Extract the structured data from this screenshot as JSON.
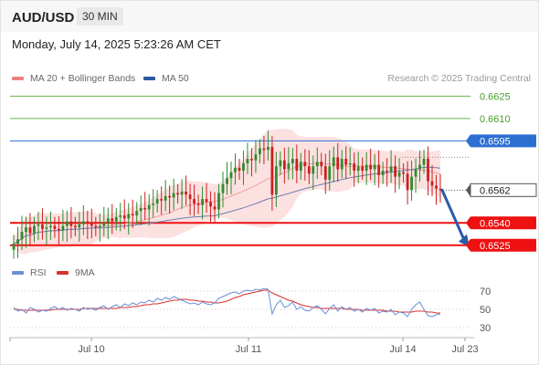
{
  "header": {
    "symbol": "AUD/USD",
    "timeframe": "30 MIN",
    "datetime": "Monday, July 14, 2025 5:23:26 AM CET"
  },
  "legend": {
    "items": [
      {
        "label": "MA 20 + Bollinger Bands",
        "color": "#f08080"
      },
      {
        "label": "MA 50",
        "color": "#2c5aa0"
      }
    ],
    "credit": "Research © 2025 Trading Central"
  },
  "rsi_legend": {
    "items": [
      {
        "label": "RSI",
        "color": "#6a8fd8"
      },
      {
        "label": "9MA",
        "color": "#d93030"
      }
    ]
  },
  "colors": {
    "up": "#2e8b2e",
    "down": "#cc1f1f",
    "support": "#ee1111",
    "resistance_green": "#6ab04c",
    "resistance_blue": "#2c6fd1",
    "arrow": "#2b5aa8",
    "band": "#fbdcdc"
  },
  "chart_data": [
    {
      "type": "candlestick",
      "title": "AUD/USD",
      "y_range": [
        0.6512,
        0.6632
      ],
      "x_labels": [
        "Jul 10",
        "Jul 11",
        "Jul 14",
        "Jul 23"
      ],
      "levels": [
        {
          "value": 0.6625,
          "label": "0.6625",
          "kind": "resistance"
        },
        {
          "value": 0.661,
          "label": "0.6610",
          "kind": "resistance"
        },
        {
          "value": 0.6595,
          "label": "0.6595",
          "kind": "pivot"
        },
        {
          "value": 0.654,
          "label": "0.6540",
          "kind": "support"
        },
        {
          "value": 0.6525,
          "label": "0.6525",
          "kind": "support"
        }
      ],
      "last_price": {
        "value": 0.6562,
        "label": "0.6562"
      },
      "forecast_arrow": {
        "from": 0.6562,
        "to": 0.6525
      },
      "candles_close": [
        0.6526,
        0.6529,
        0.6534,
        0.6537,
        0.6533,
        0.6538,
        0.6539,
        0.6536,
        0.6537,
        0.6538,
        0.6536,
        0.6535,
        0.6538,
        0.6541,
        0.6538,
        0.6537,
        0.6539,
        0.6541,
        0.654,
        0.6538,
        0.6537,
        0.6538,
        0.654,
        0.6543,
        0.6541,
        0.6544,
        0.6545,
        0.6543,
        0.6546,
        0.6545,
        0.6548,
        0.655,
        0.6549,
        0.6552,
        0.6553,
        0.6556,
        0.6555,
        0.6558,
        0.6557,
        0.656,
        0.6559,
        0.6561,
        0.6559,
        0.6556,
        0.6553,
        0.6552,
        0.6556,
        0.6554,
        0.6551,
        0.6549,
        0.656,
        0.6566,
        0.657,
        0.6574,
        0.6577,
        0.6575,
        0.658,
        0.6583,
        0.6582,
        0.6586,
        0.659,
        0.6589,
        0.6591,
        0.6559,
        0.6578,
        0.6582,
        0.6576,
        0.658,
        0.6583,
        0.6575,
        0.6581,
        0.6578,
        0.6573,
        0.6578,
        0.6581,
        0.6578,
        0.6569,
        0.6578,
        0.6584,
        0.6576,
        0.6583,
        0.6579,
        0.658,
        0.6575,
        0.6578,
        0.6575,
        0.6579,
        0.6576,
        0.6579,
        0.6572,
        0.6575,
        0.6574,
        0.6578,
        0.6571,
        0.6574,
        0.6573,
        0.6562,
        0.6571,
        0.6576,
        0.6579,
        0.6583,
        0.6568,
        0.6565,
        0.6563,
        0.6562
      ]
    },
    {
      "type": "line",
      "title": "RSI",
      "y_range": [
        25,
        75
      ],
      "y_ticks": [
        70,
        50,
        30
      ],
      "series": [
        {
          "name": "RSI",
          "values": [
            52,
            48,
            50,
            46,
            52,
            50,
            47,
            49,
            48,
            51,
            53,
            50,
            52,
            49,
            51,
            50,
            48,
            52,
            50,
            51,
            49,
            52,
            54,
            50,
            53,
            55,
            52,
            56,
            54,
            57,
            55,
            58,
            57,
            60,
            58,
            62,
            60,
            63,
            61,
            64,
            62,
            60,
            58,
            56,
            57,
            55,
            58,
            56,
            55,
            57,
            62,
            64,
            66,
            68,
            69,
            67,
            70,
            71,
            70,
            72,
            71,
            73,
            72,
            45,
            55,
            60,
            52,
            54,
            58,
            50,
            53,
            49,
            48,
            52,
            54,
            50,
            45,
            51,
            55,
            48,
            53,
            50,
            52,
            48,
            50,
            47,
            51,
            49,
            51,
            46,
            48,
            47,
            50,
            44,
            47,
            46,
            42,
            50,
            55,
            58,
            50,
            43,
            42,
            44,
            45
          ]
        },
        {
          "name": "9MA",
          "values": [
            50,
            50,
            49,
            49,
            49,
            49,
            49,
            49,
            49,
            49,
            50,
            50,
            50,
            50,
            50,
            50,
            50,
            51,
            51,
            51,
            51,
            51,
            51,
            51,
            51,
            51,
            52,
            52,
            52,
            53,
            53,
            54,
            55,
            55,
            56,
            56,
            57,
            58,
            59,
            60,
            60,
            61,
            61,
            60,
            60,
            59,
            59,
            58,
            58,
            57,
            57,
            58,
            59,
            61,
            63,
            64,
            66,
            67,
            68,
            69,
            70,
            71,
            71,
            68,
            66,
            64,
            62,
            60,
            59,
            57,
            55,
            54,
            53,
            52,
            52,
            51,
            51,
            51,
            51,
            51,
            51,
            50,
            50,
            50,
            50,
            49,
            49,
            49,
            49,
            49,
            49,
            48,
            48,
            48,
            47,
            47,
            47,
            47,
            48,
            48,
            48,
            47,
            47,
            46,
            46
          ]
        }
      ]
    }
  ]
}
